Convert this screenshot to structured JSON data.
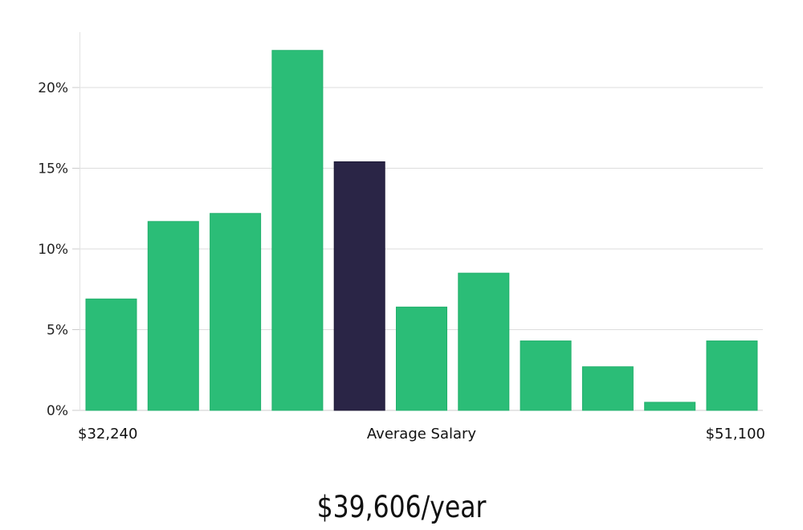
{
  "chart_data": {
    "type": "bar",
    "title": "",
    "xlabel": "Average Salary",
    "ylabel": "",
    "x_range_labels": {
      "min": "$32,240",
      "max": "$51,100"
    },
    "values": [
      6.9,
      11.7,
      12.2,
      22.3,
      15.4,
      6.4,
      8.5,
      4.3,
      2.7,
      0.5,
      4.3
    ],
    "highlight_index": 4,
    "ylim": [
      0,
      23.5
    ],
    "yticks": [
      0,
      5,
      10,
      15,
      20
    ],
    "ytick_labels": [
      "0%",
      "5%",
      "10%",
      "15%",
      "20%"
    ],
    "grid": true,
    "colors": {
      "bar": "#2bbd77",
      "highlight": "#2a2546",
      "grid": "#dddddd"
    }
  },
  "summary": "$39,606/year"
}
